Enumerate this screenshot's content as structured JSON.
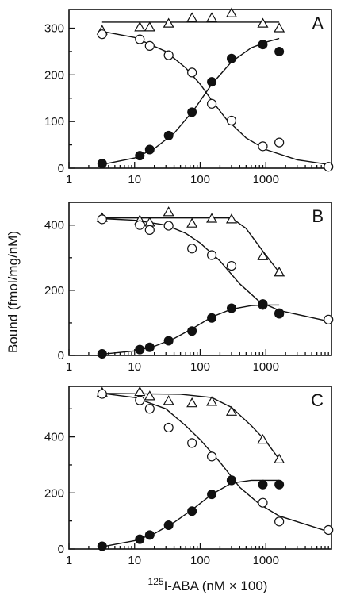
{
  "figure": {
    "ylabel": "Bound  (fmol/mg/nM)",
    "xlabel_sup": "125",
    "xlabel_main": "I-ABA  (nM × 100)"
  },
  "chart_data": [
    {
      "type": "scatter",
      "panel_label": "A",
      "xscale": "log",
      "xlim": [
        1,
        10000
      ],
      "ylim": [
        0,
        340
      ],
      "x_ticks": [
        1,
        10,
        100,
        1000
      ],
      "x_tick_labels": [
        "1",
        "10",
        "100",
        "1000"
      ],
      "y_ticks": [
        0,
        100,
        200,
        300
      ],
      "y_tick_labels": [
        "0",
        "100",
        "200",
        "300"
      ],
      "series": [
        {
          "marker": "triangle-open",
          "points": [
            [
              3.2,
              295
            ],
            [
              12,
              302
            ],
            [
              17,
              302
            ],
            [
              33,
              310
            ],
            [
              75,
              322
            ],
            [
              150,
              322
            ],
            [
              300,
              332
            ],
            [
              900,
              310
            ],
            [
              1600,
              300
            ]
          ],
          "fit": [
            [
              3.2,
              313
            ],
            [
              1600,
              313
            ]
          ]
        },
        {
          "marker": "circle-open",
          "points": [
            [
              3.2,
              287
            ],
            [
              12,
              276
            ],
            [
              17,
              262
            ],
            [
              33,
              242
            ],
            [
              75,
              205
            ],
            [
              150,
              138
            ],
            [
              300,
              102
            ],
            [
              900,
              47
            ],
            [
              1600,
              55
            ],
            [
              9000,
              3
            ]
          ],
          "fit": [
            [
              3.2,
              293
            ],
            [
              10,
              280
            ],
            [
              30,
              250
            ],
            [
              60,
              215
            ],
            [
              100,
              180
            ],
            [
              150,
              145
            ],
            [
              250,
              105
            ],
            [
              500,
              65
            ],
            [
              1000,
              40
            ],
            [
              3000,
              18
            ],
            [
              9000,
              8
            ]
          ]
        },
        {
          "marker": "circle-filled",
          "points": [
            [
              3.2,
              10
            ],
            [
              12,
              27
            ],
            [
              17,
              40
            ],
            [
              33,
              70
            ],
            [
              75,
              120
            ],
            [
              150,
              185
            ],
            [
              300,
              235
            ],
            [
              900,
              265
            ],
            [
              1600,
              250
            ]
          ],
          "fit": [
            [
              3.2,
              8
            ],
            [
              10,
              22
            ],
            [
              20,
              42
            ],
            [
              40,
              75
            ],
            [
              80,
              125
            ],
            [
              150,
              180
            ],
            [
              300,
              228
            ],
            [
              600,
              258
            ],
            [
              1000,
              270
            ],
            [
              1600,
              278
            ]
          ]
        }
      ]
    },
    {
      "type": "scatter",
      "panel_label": "B",
      "xscale": "log",
      "xlim": [
        1,
        10000
      ],
      "ylim": [
        0,
        470
      ],
      "x_ticks": [
        1,
        10,
        100,
        1000
      ],
      "x_tick_labels": [
        "1",
        "10",
        "100",
        "1000"
      ],
      "y_ticks": [
        0,
        200,
        400
      ],
      "y_tick_labels": [
        "0",
        "200",
        "400"
      ],
      "series": [
        {
          "marker": "triangle-open",
          "points": [
            [
              3.2,
              422
            ],
            [
              12,
              415
            ],
            [
              17,
              408
            ],
            [
              33,
              440
            ],
            [
              75,
              405
            ],
            [
              150,
              420
            ],
            [
              300,
              418
            ],
            [
              900,
              305
            ],
            [
              1600,
              255
            ]
          ],
          "fit": [
            [
              3.2,
              422
            ],
            [
              300,
              422
            ],
            [
              500,
              390
            ],
            [
              900,
              320
            ],
            [
              1600,
              255
            ]
          ]
        },
        {
          "marker": "circle-open",
          "points": [
            [
              3.2,
              418
            ],
            [
              12,
              400
            ],
            [
              17,
              385
            ],
            [
              33,
              398
            ],
            [
              75,
              328
            ],
            [
              150,
              308
            ],
            [
              300,
              275
            ],
            [
              900,
              155
            ],
            [
              1600,
              128
            ],
            [
              9000,
              110
            ]
          ],
          "fit": [
            [
              3.2,
              420
            ],
            [
              10,
              415
            ],
            [
              30,
              400
            ],
            [
              60,
              375
            ],
            [
              100,
              345
            ],
            [
              200,
              290
            ],
            [
              400,
              220
            ],
            [
              800,
              165
            ],
            [
              1600,
              138
            ],
            [
              9000,
              105
            ]
          ]
        },
        {
          "marker": "circle-filled",
          "points": [
            [
              3.2,
              5
            ],
            [
              12,
              18
            ],
            [
              17,
              25
            ],
            [
              33,
              45
            ],
            [
              75,
              75
            ],
            [
              150,
              115
            ],
            [
              300,
              145
            ],
            [
              900,
              158
            ],
            [
              1600,
              130
            ]
          ],
          "fit": [
            [
              3.2,
              4
            ],
            [
              10,
              14
            ],
            [
              20,
              28
            ],
            [
              40,
              52
            ],
            [
              80,
              85
            ],
            [
              150,
              118
            ],
            [
              300,
              142
            ],
            [
              600,
              153
            ],
            [
              900,
              155
            ],
            [
              1600,
              155
            ]
          ]
        }
      ]
    },
    {
      "type": "scatter",
      "panel_label": "C",
      "xscale": "log",
      "xlim": [
        1,
        10000
      ],
      "ylim": [
        0,
        580
      ],
      "x_ticks": [
        1,
        10,
        100,
        1000
      ],
      "x_tick_labels": [
        "1",
        "10",
        "100",
        "1000"
      ],
      "y_ticks": [
        0,
        200,
        400
      ],
      "y_tick_labels": [
        "0",
        "200",
        "400"
      ],
      "series": [
        {
          "marker": "triangle-open",
          "points": [
            [
              3.2,
              558
            ],
            [
              12,
              560
            ],
            [
              17,
              545
            ],
            [
              33,
              528
            ],
            [
              75,
              520
            ],
            [
              150,
              525
            ],
            [
              300,
              490
            ],
            [
              900,
              390
            ],
            [
              1600,
              320
            ]
          ],
          "fit": [
            [
              3.2,
              555
            ],
            [
              50,
              552
            ],
            [
              150,
              540
            ],
            [
              300,
              505
            ],
            [
              600,
              440
            ],
            [
              1000,
              385
            ],
            [
              1600,
              320
            ]
          ]
        },
        {
          "marker": "circle-open",
          "points": [
            [
              3.2,
              553
            ],
            [
              12,
              530
            ],
            [
              17,
              500
            ],
            [
              33,
              433
            ],
            [
              75,
              378
            ],
            [
              150,
              330
            ],
            [
              300,
              245
            ],
            [
              900,
              165
            ],
            [
              1600,
              98
            ],
            [
              9000,
              68
            ]
          ],
          "fit": [
            [
              3.2,
              555
            ],
            [
              10,
              540
            ],
            [
              30,
              500
            ],
            [
              60,
              440
            ],
            [
              100,
              390
            ],
            [
              200,
              310
            ],
            [
              400,
              220
            ],
            [
              800,
              160
            ],
            [
              1600,
              118
            ],
            [
              9000,
              62
            ]
          ]
        },
        {
          "marker": "circle-filled",
          "points": [
            [
              3.2,
              10
            ],
            [
              12,
              35
            ],
            [
              17,
              50
            ],
            [
              33,
              85
            ],
            [
              75,
              135
            ],
            [
              150,
              195
            ],
            [
              300,
              245
            ],
            [
              900,
              230
            ],
            [
              1600,
              230
            ]
          ],
          "fit": [
            [
              3.2,
              8
            ],
            [
              10,
              30
            ],
            [
              20,
              55
            ],
            [
              40,
              95
            ],
            [
              80,
              145
            ],
            [
              150,
              195
            ],
            [
              300,
              235
            ],
            [
              600,
              245
            ],
            [
              1600,
              245
            ]
          ]
        }
      ]
    }
  ]
}
